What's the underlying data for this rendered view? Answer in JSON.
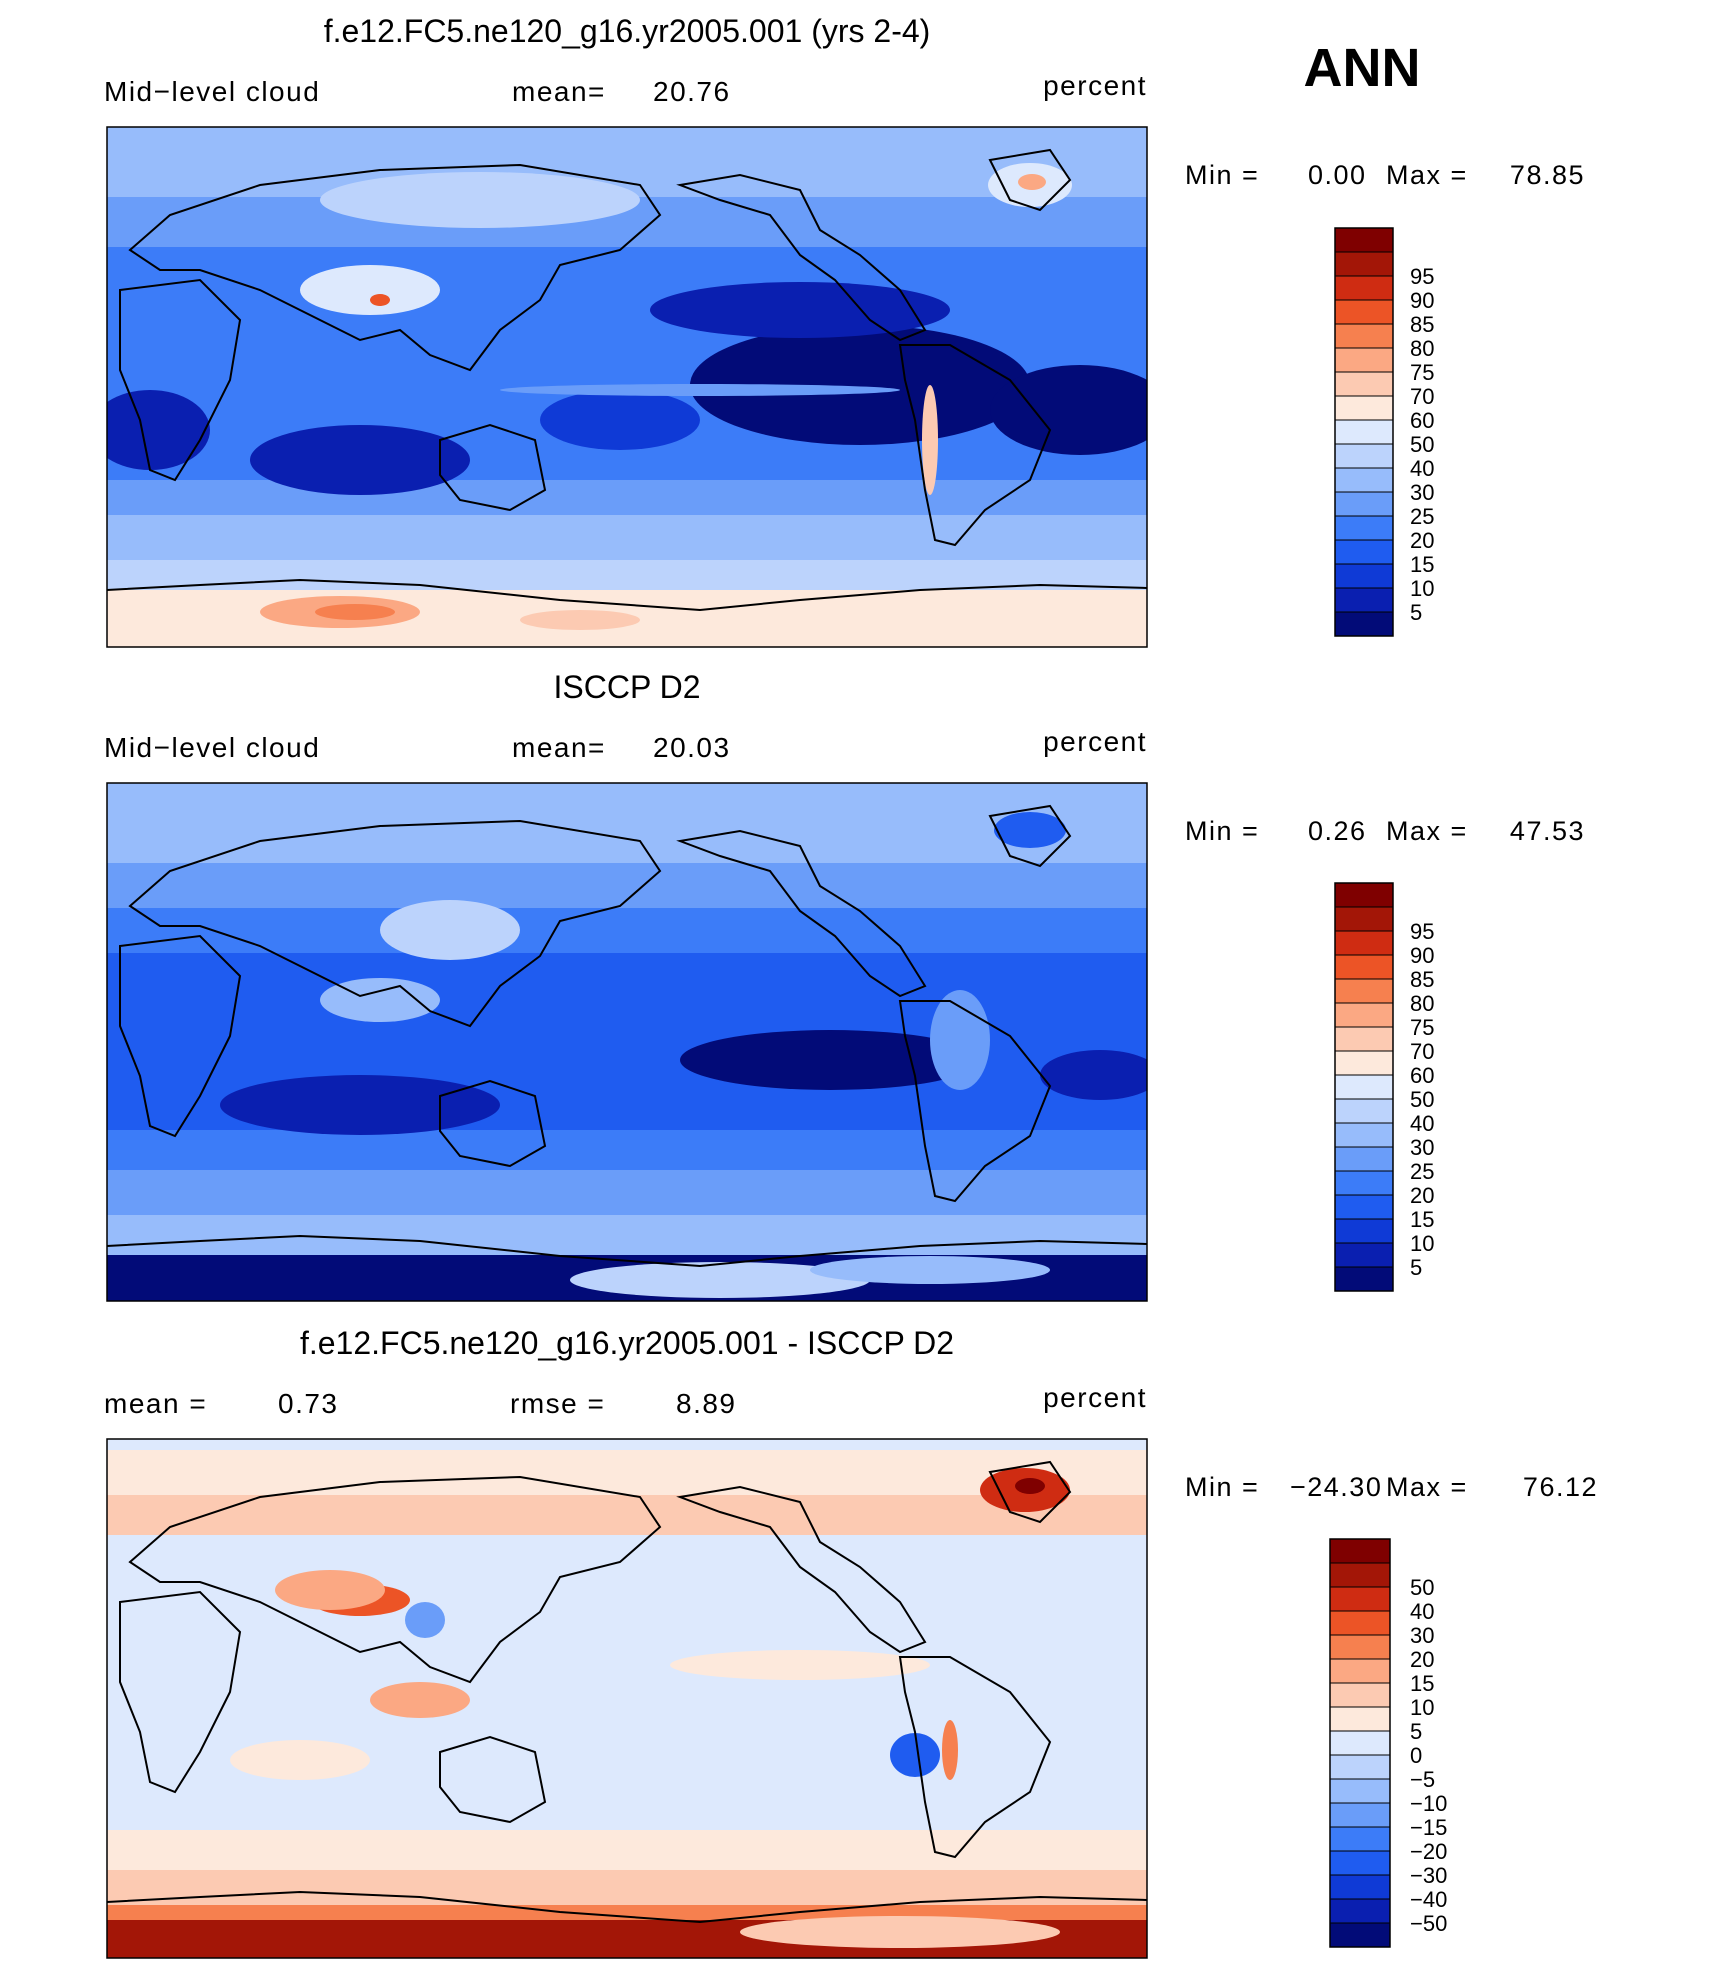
{
  "season": "ANN",
  "palette": {
    "seq": [
      "#020b78",
      "#0a1fb0",
      "#0f3ad6",
      "#1f5cf0",
      "#3c7cf8",
      "#6a9df9",
      "#97bcfb",
      "#bcd3fc",
      "#dde9fd",
      "#fde9dc",
      "#fccab2",
      "#fba883",
      "#f6804f",
      "#ec5426",
      "#cf2c12",
      "#a31607",
      "#7f0000"
    ],
    "div": [
      "#020b78",
      "#0a1fb0",
      "#0f3ad6",
      "#1f5cf0",
      "#3c7cf8",
      "#6a9df9",
      "#97bcfb",
      "#bcd3fc",
      "#dde9fd",
      "#fde9dc",
      "#fccab2",
      "#fba883",
      "#f6804f",
      "#ec5426",
      "#cf2c12",
      "#a31607",
      "#7f0000"
    ]
  },
  "chart_data": [
    {
      "type": "heatmap",
      "title": "f.e12.FC5.ne120_g16.yr2005.001 (yrs 2-4)",
      "variable": "Mid−level cloud",
      "stat1_label": "mean=",
      "stat1_value": "20.76",
      "stat2_label": "",
      "stat2_value": "",
      "units": "percent",
      "min_label": "Min  =",
      "min_value": "0.00",
      "max_label": "Max  =",
      "max_value": "78.85",
      "colorbar_levels": [
        "5",
        "10",
        "15",
        "20",
        "25",
        "30",
        "40",
        "50",
        "60",
        "70",
        "75",
        "80",
        "85",
        "90",
        "95"
      ]
    },
    {
      "type": "heatmap",
      "title": "ISCCP D2",
      "variable": "Mid−level cloud",
      "stat1_label": "mean=",
      "stat1_value": "20.03",
      "stat2_label": "",
      "stat2_value": "",
      "units": "percent",
      "min_label": "Min  =",
      "min_value": "0.26",
      "max_label": "Max  =",
      "max_value": "47.53",
      "colorbar_levels": [
        "5",
        "10",
        "15",
        "20",
        "25",
        "30",
        "40",
        "50",
        "60",
        "70",
        "75",
        "80",
        "85",
        "90",
        "95"
      ]
    },
    {
      "type": "heatmap",
      "title": "f.e12.FC5.ne120_g16.yr2005.001 - ISCCP D2",
      "variable": "",
      "stat1_label": "mean =",
      "stat1_value": "0.73",
      "stat2_label": "rmse =",
      "stat2_value": "8.89",
      "units": "percent",
      "min_label": "Min  =",
      "min_value": "−24.30",
      "max_label": "Max  =",
      "max_value": "76.12",
      "colorbar_levels": [
        "−50",
        "−40",
        "−30",
        "−20",
        "−15",
        "−10",
        "−5",
        "0",
        "5",
        "10",
        "15",
        "20",
        "30",
        "40",
        "50"
      ]
    }
  ]
}
